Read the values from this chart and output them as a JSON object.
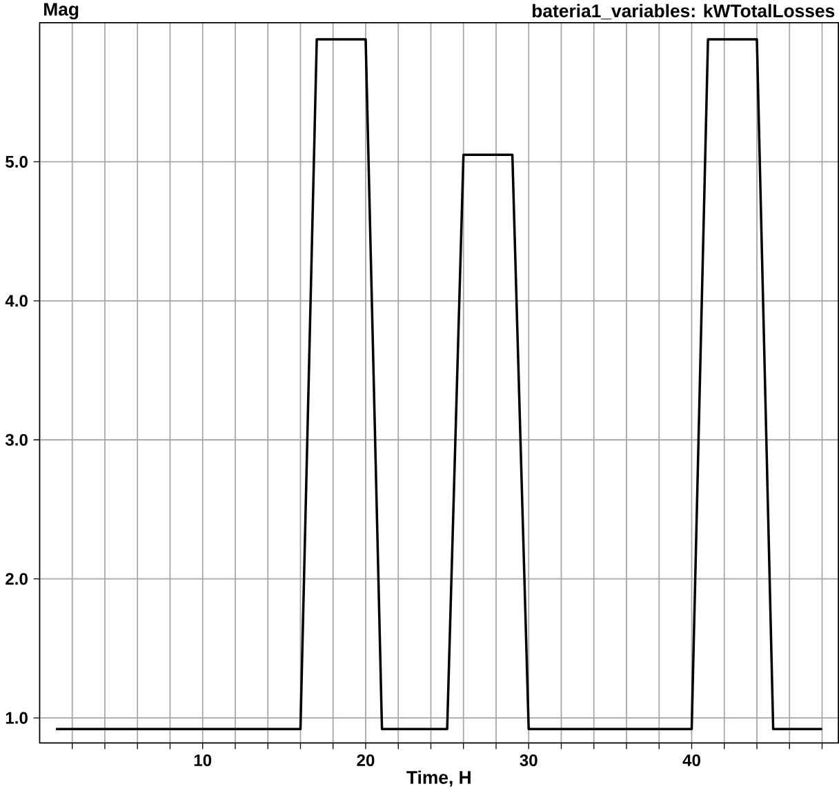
{
  "chart_data": {
    "type": "line",
    "title": "bateria1_variables: kWTotalLosses",
    "xlabel": "Time, H",
    "ylabel": "Mag",
    "x": [
      1,
      16,
      17,
      20,
      21,
      25,
      26,
      29,
      30,
      40,
      41,
      44,
      45,
      48
    ],
    "values": [
      0.92,
      0.92,
      5.88,
      5.88,
      0.92,
      0.92,
      5.05,
      5.05,
      0.92,
      0.92,
      5.88,
      5.88,
      0.92,
      0.92
    ],
    "color": "#000000",
    "xlim": [
      0,
      49
    ],
    "ylim": [
      0.82,
      6.0
    ],
    "xticks": [
      {
        "value": 2,
        "label": null
      },
      {
        "value": 4,
        "label": null
      },
      {
        "value": 6,
        "label": null
      },
      {
        "value": 8,
        "label": null
      },
      10,
      {
        "value": 12,
        "label": null
      },
      {
        "value": 14,
        "label": null
      },
      {
        "value": 16,
        "label": null
      },
      {
        "value": 18,
        "label": null
      },
      20,
      {
        "value": 22,
        "label": null
      },
      {
        "value": 24,
        "label": null
      },
      {
        "value": 26,
        "label": null
      },
      {
        "value": 28,
        "label": null
      },
      30,
      {
        "value": 32,
        "label": null
      },
      {
        "value": 34,
        "label": null
      },
      {
        "value": 36,
        "label": null
      },
      {
        "value": 38,
        "label": null
      },
      40,
      {
        "value": 42,
        "label": null
      },
      {
        "value": 44,
        "label": null
      },
      {
        "value": 46,
        "label": null
      },
      {
        "value": 48,
        "label": null
      }
    ],
    "yticks": [
      {
        "value": 1,
        "label": "1.0"
      },
      {
        "value": 2,
        "label": "2.0"
      },
      {
        "value": 3,
        "label": "3.0"
      },
      {
        "value": 4,
        "label": "4.0"
      },
      {
        "value": 5,
        "label": "5.0"
      }
    ],
    "grid": true,
    "marker": "none",
    "line_style": "solid"
  }
}
